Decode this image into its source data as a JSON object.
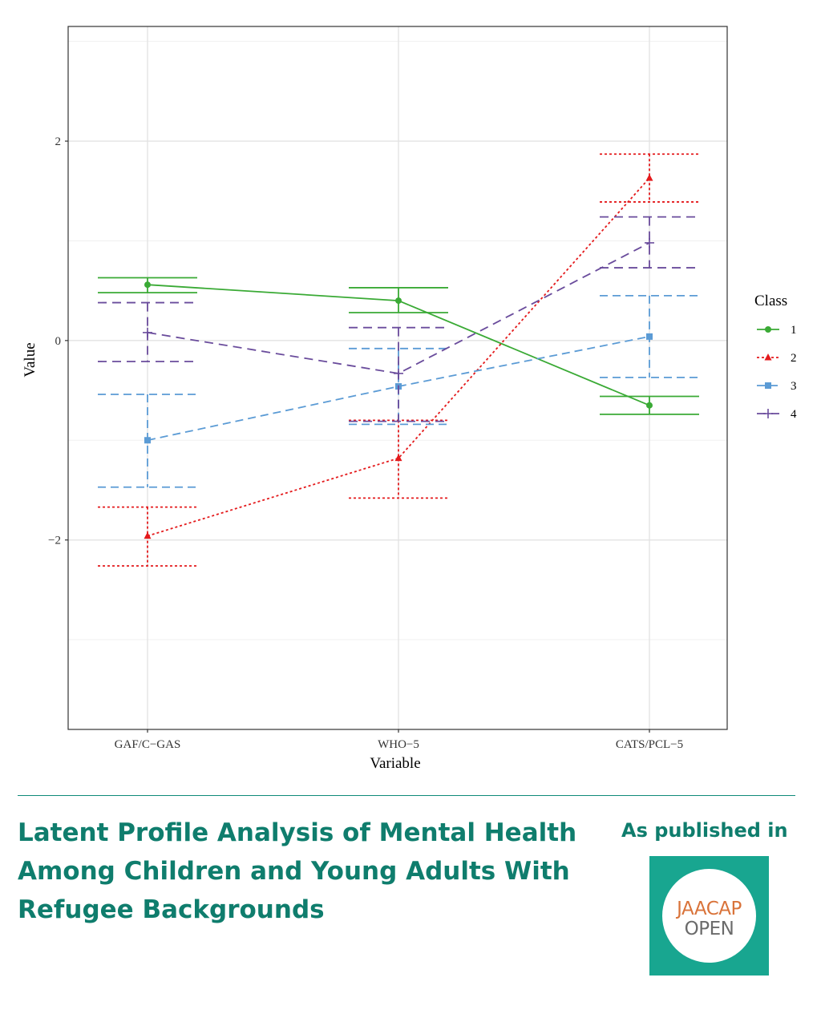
{
  "chart_data": {
    "type": "line",
    "title": "",
    "xlabel": "Variable",
    "ylabel": "Value",
    "categories": [
      "GAF/C−GAS",
      "WHO−5",
      "CATS/PCL−5"
    ],
    "ylim": [
      -3.9,
      3.15
    ],
    "yticks": [
      -2,
      0,
      2
    ],
    "ytick_labels": [
      "−2",
      "0",
      "2"
    ],
    "grid": true,
    "legend_title": "Class",
    "legend_position": "right",
    "series": [
      {
        "name": "1",
        "values": [
          0.56,
          0.4,
          -0.65
        ],
        "lower": [
          0.48,
          0.28,
          -0.74
        ],
        "upper": [
          0.63,
          0.53,
          -0.56
        ],
        "color": "#3aaa35",
        "marker": "circle",
        "dash": "solid"
      },
      {
        "name": "2",
        "values": [
          -1.96,
          -1.18,
          1.63
        ],
        "lower": [
          -2.26,
          -1.58,
          1.39
        ],
        "upper": [
          -1.67,
          -0.8,
          1.87
        ],
        "color": "#e41a1c",
        "marker": "triangle",
        "dash": "dotted"
      },
      {
        "name": "3",
        "values": [
          -1.0,
          -0.46,
          0.04
        ],
        "lower": [
          -1.47,
          -0.84,
          -0.37
        ],
        "upper": [
          -0.54,
          -0.08,
          0.45
        ],
        "color": "#5b9bd5",
        "marker": "square",
        "dash": "dashed"
      },
      {
        "name": "4",
        "values": [
          0.08,
          -0.33,
          0.98
        ],
        "lower": [
          -0.21,
          -0.81,
          0.73
        ],
        "upper": [
          0.38,
          0.13,
          1.24
        ],
        "color": "#6a4c9c",
        "marker": "plus",
        "dash": "longdash"
      }
    ]
  },
  "caption": {
    "title_lines": [
      "Latent Profile Analysis of Mental Health",
      "Among Children and Young Adults With",
      "Refugee Backgrounds"
    ],
    "published_label": "As published in",
    "journal_line1": "JAACAP",
    "journal_line2": "OPEN"
  },
  "colors": {
    "accent": "#0f7d6d",
    "logo_background": "#18a690",
    "logo_orange": "#d9733a"
  }
}
